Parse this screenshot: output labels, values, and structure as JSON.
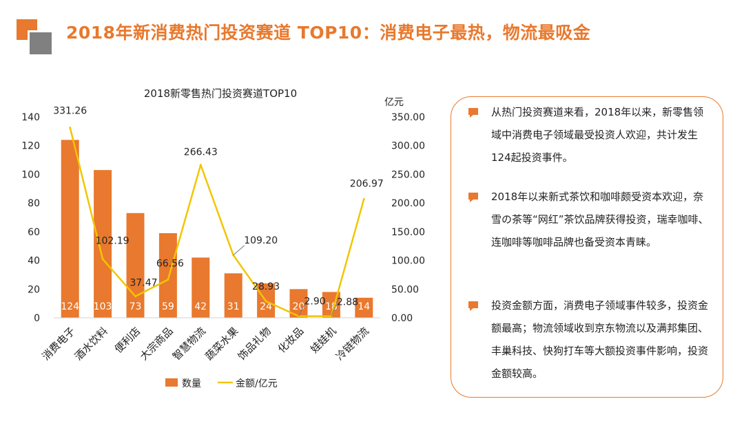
{
  "page_title": "2018年新消费热门投资赛道 TOP10：消费电子最热，物流最吸金",
  "colors": {
    "accent": "#E8792E",
    "gray": "#808080",
    "line": "#F2C500"
  },
  "chart_data": {
    "type": "bar",
    "title": "2018新零售热门投资赛道TOP10",
    "categories": [
      "消费电子",
      "酒水饮料",
      "便利店",
      "大宗商品",
      "智慧物流",
      "蔬菜水果",
      "饰品礼物",
      "化妆品",
      "娃娃机",
      "冷链物流"
    ],
    "series": [
      {
        "name": "数量",
        "type": "bar",
        "axis": "left",
        "values": [
          124,
          103,
          73,
          59,
          42,
          31,
          24,
          20,
          18,
          14
        ],
        "value_labels": [
          "124",
          "103",
          "73",
          "59",
          "42",
          "31",
          "24",
          "20",
          "18",
          "14"
        ]
      },
      {
        "name": "金额/亿元",
        "type": "line",
        "axis": "right",
        "values": [
          331.26,
          102.19,
          37.47,
          66.56,
          266.43,
          109.2,
          28.93,
          2.9,
          2.88,
          206.97
        ],
        "value_labels": [
          "331.26",
          "102.19",
          "37.47",
          "66.56",
          "266.43",
          "109.20",
          "28.93",
          "2.90",
          "2.88",
          "206.97"
        ]
      }
    ],
    "y_left": {
      "min": 0,
      "max": 140,
      "ticks": [
        "0",
        "20",
        "40",
        "60",
        "80",
        "100",
        "120",
        "140"
      ]
    },
    "y_right": {
      "min": 0,
      "max": 350,
      "unit": "亿元",
      "ticks": [
        "0.00",
        "50.00",
        "100.00",
        "150.00",
        "200.00",
        "250.00",
        "300.00",
        "350.00"
      ]
    },
    "grid": false,
    "legend": "bottom"
  },
  "notes": [
    "从热门投资赛道来看，2018年以来，新零售领域中消费电子领域最受投资人欢迎，共计发生124起投资事件。",
    "2018年以来新式茶饮和咖啡颇受资本欢迎，奈雪の茶等“网红”茶饮品牌获得投资，瑞幸咖啡、连咖啡等咖啡品牌也备受资本青睐。",
    "投资金额方面，消费电子领域事件较多，投资金额最高；物流领域收到京东物流以及满邦集团、丰巢科技、快狗打车等大额投资事件影响，投资金额较高。"
  ]
}
